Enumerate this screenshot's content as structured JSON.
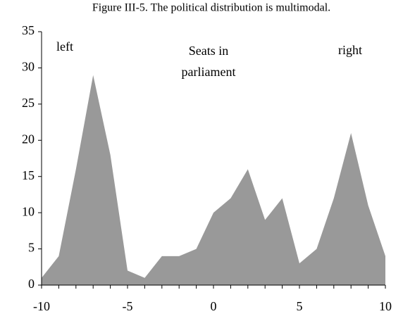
{
  "chart_data": {
    "type": "area",
    "title": "Figure III-5. The political distribution is multimodal.",
    "annotations": [
      "left",
      [
        "Seats in",
        "parliament"
      ],
      "right"
    ],
    "x": [
      -10,
      -9,
      -8,
      -7,
      -6,
      -5,
      -4,
      -3,
      -2,
      -1,
      0,
      1,
      2,
      3,
      4,
      5,
      6,
      7,
      8,
      9,
      10
    ],
    "values": [
      1,
      4,
      16,
      29,
      18,
      2,
      1,
      4,
      4,
      5,
      10,
      12,
      16,
      9,
      12,
      3,
      5,
      12,
      21,
      11,
      4
    ],
    "color": "#999999",
    "xlim": [
      -10,
      10
    ],
    "xticks": [
      -10,
      -5,
      0,
      5,
      10
    ],
    "ylim": [
      0,
      35
    ],
    "yticks": [
      0,
      5,
      10,
      15,
      20,
      25,
      30,
      35
    ],
    "grid": false
  }
}
